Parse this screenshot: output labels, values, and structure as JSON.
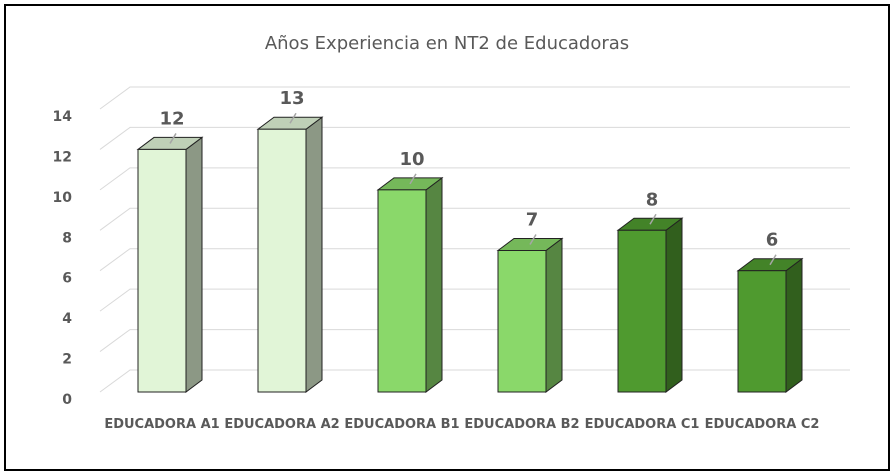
{
  "chart_data": {
    "type": "bar3d",
    "title": "Años Experiencia en NT2 de Educadoras",
    "categories": [
      "EDUCADORA A1",
      "EDUCADORA A2",
      "EDUCADORA B1",
      "EDUCADORA B2",
      "EDUCADORA C1",
      "EDUCADORA C2"
    ],
    "values": [
      12,
      13,
      10,
      7,
      8,
      6
    ],
    "colors": [
      "#e1f5d7",
      "#e1f5d7",
      "#8ad86a",
      "#8ad86a",
      "#4f9a2f",
      "#4f9a2f"
    ],
    "ylim": [
      0,
      14
    ],
    "yticks": [
      0,
      2,
      4,
      6,
      8,
      10,
      12,
      14
    ],
    "grid": true
  }
}
